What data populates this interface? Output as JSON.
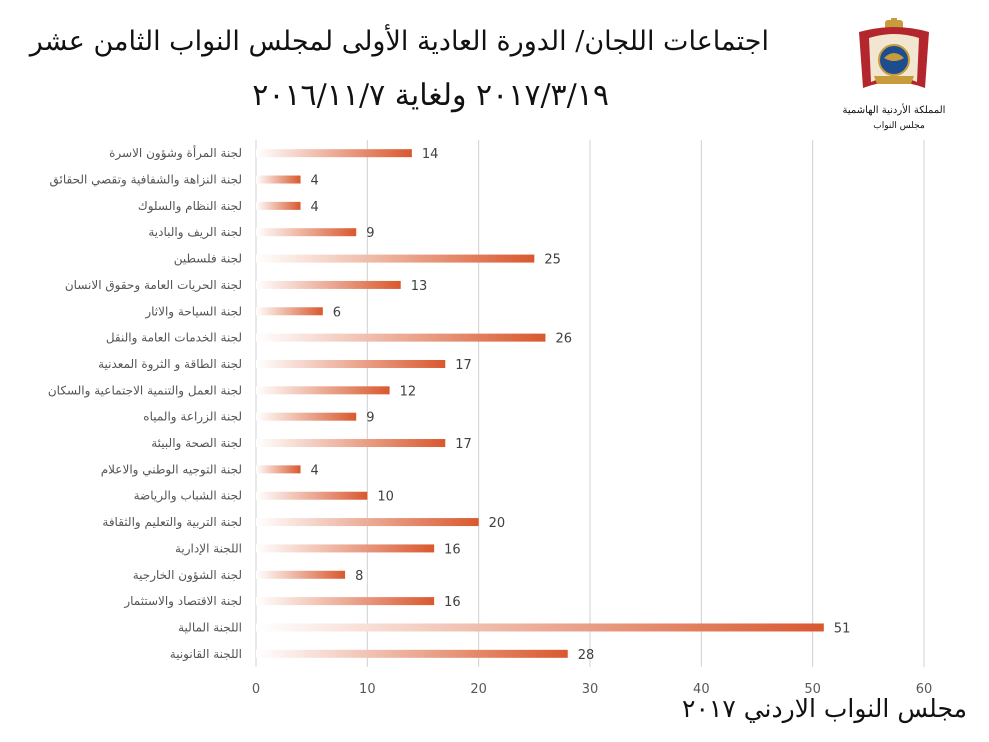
{
  "header": {
    "title_line1": "اجتماعات اللجان/ الدورة العادية الأولى لمجلس النواب الثامن عشر",
    "title_line2": "٢٠١٧/٣/١٩ ولغاية ٢٠١٦/١١/٧",
    "logo_text_line1": "المملكة الأردنية الهاشمية",
    "logo_text_line2": "مجلس النواب"
  },
  "footer": {
    "text": "مجلس النواب الاردني ٢٠١٧"
  },
  "colors": {
    "bar": "#d9582e",
    "bar_fade": "#ffffff",
    "grid": "#d0d0d0",
    "logo_red": "#b3262d",
    "logo_gold": "#c89b3c"
  },
  "chart_data": {
    "type": "bar",
    "orientation": "horizontal",
    "categories": [
      "لجنة المرأة وشؤون الاسرة",
      "لجنة النزاهة والشفافية وتقصي الحقائق",
      "لجنة النظام والسلوك",
      "لجنة الريف والبادية",
      "لجنة فلسطين",
      "لجنة الحريات العامة وحقوق الانسان",
      "لجنة السياحة والاثار",
      "لجنة الخدمات العامة والنقل",
      "لجنة الطاقة و الثروة المعدنية",
      "لجنة العمل والتنمية الاجتماعية والسكان",
      "لجنة الزراعة والمياه",
      "لجنة الصحة والبيئة",
      "لجنة التوجيه الوطني والاعلام",
      "لجنة الشباب والرياضة",
      "لجنة التربية والتعليم والثقافة",
      "اللجنة الإدارية",
      "لجنة الشؤون الخارجية",
      "لجنة الاقتصاد والاستثمار",
      "اللجنة المالية",
      "اللجنة القانونية"
    ],
    "values": [
      14,
      4,
      4,
      9,
      25,
      13,
      6,
      26,
      17,
      12,
      9,
      17,
      4,
      10,
      20,
      16,
      8,
      16,
      51,
      28
    ],
    "xlim": [
      0,
      60
    ],
    "xticks": [
      0,
      10,
      20,
      30,
      40,
      50,
      60
    ],
    "grid": true,
    "data_labels": true,
    "legend": false
  }
}
